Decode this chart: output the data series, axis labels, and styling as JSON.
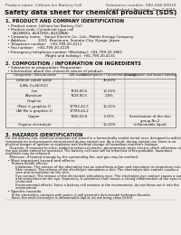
{
  "bg_color": "#f0ede8",
  "header_left": "Product name: Lithium Ion Battery Cell",
  "header_right_line1": "Substance number: 580-068-00010",
  "header_right_line2": "Established / Revision: Dec.7,2010",
  "main_title": "Safety data sheet for chemical products (SDS)",
  "section1_title": "1. PRODUCT AND COMPANY IDENTIFICATION",
  "section1_lines": [
    "  • Product name: Lithium Ion Battery Cell",
    "  • Product code: Cylindrical-type cell",
    "      (A14865U, A14185S, A14186A)",
    "  • Company name:   Sanyo Electric Co., Ltd., Mobile Energy Company",
    "  • Address:          2221  Kamimura, Sumoto-City, Hyogo, Japan",
    "  • Telephone number:   +81-799-20-4111",
    "  • Fax number:   +81-799-20-4129",
    "  • Emergency telephone number (Weekday): +81-799-20-3962",
    "                                   (Night and holiday): +81-799-20-4131"
  ],
  "section2_title": "2. COMPOSITION / INFORMATION ON INGREDIENTS",
  "section2_sub1": "  • Substance or preparation: Preparation",
  "section2_sub2": "  • Information about the chemical nature of product:",
  "col_headers_row1": [
    "Component / General name",
    "CAS number",
    "Concentration / Concentration range",
    "Classification and hazard labeling"
  ],
  "table_rows": [
    [
      "Lithium cobalt oxide",
      "-",
      "30-60%",
      ""
    ],
    [
      "(LiMn-Co-Ni)(O2)",
      "",
      "",
      ""
    ],
    [
      "Iron",
      "7439-89-6",
      "10-20%",
      ""
    ],
    [
      "Aluminum",
      "7429-90-5",
      "2-8%",
      ""
    ],
    [
      "Graphite",
      "",
      "",
      ""
    ],
    [
      "(Most is graphite-1)",
      "17782-42-5",
      "10-25%",
      ""
    ],
    [
      "(All Mo is graphite-1)",
      "17783-44-2",
      "",
      ""
    ],
    [
      "Copper",
      "7440-50-8",
      "5-15%",
      "Sensitization of the skin\ngroup No.2"
    ],
    [
      "Organic electrolyte",
      "-",
      "10-20%",
      "Inflammable liquid"
    ]
  ],
  "section3_title": "3. HAZARDS IDENTIFICATION",
  "section3_para1": [
    "For the battery can, chemical materials are stored in a hermetically sealed metal case, designed to withstand",
    "temperatures and pressures encountered during normal use. As a result, during normal use, there is no",
    "physical danger of ignition or explosion and thermal change of hazardous materials leakage.",
    "    However, if exposed to a fire, added mechanical shocks, decomposed, when electric shock otherwise may occur,",
    "the gas inside cannot be operated. The battery cell case will be breached of fire-probable. hazardous",
    "materials may be released.",
    "    Moreover, if heated strongly by the surrounding fire, and gas may be emitted."
  ],
  "section3_para2_title": "  • Most important hazard and effects:",
  "section3_para2": [
    "      Human health effects:",
    "          Inhalation: The release of the electrolyte has an anesthesia action and stimulates in respiratory tract.",
    "          Skin contact: The release of the electrolyte stimulates a skin. The electrolyte skin contact causes a",
    "          sore and stimulation on the skin.",
    "          Eye contact: The release of the electrolyte stimulates eyes. The electrolyte eye contact causes a sore",
    "          and stimulation on the eye. Especially, a substance that causes a strong inflammation of the eyes is",
    "          contained.",
    "          Environmental effects: Since a battery cell remains in the environment, do not throw out it into the",
    "          environment."
  ],
  "section3_para3_title": "  • Specific hazards:",
  "section3_para3": [
    "      If the electrolyte contacts with water, it will generate detrimental hydrogen fluoride.",
    "      Since the neat electrolyte is inflammable liquid, do not bring close to fire."
  ],
  "fs_header": 3.2,
  "fs_title": 5.2,
  "fs_section": 3.8,
  "fs_body": 2.9,
  "fs_table": 2.7
}
